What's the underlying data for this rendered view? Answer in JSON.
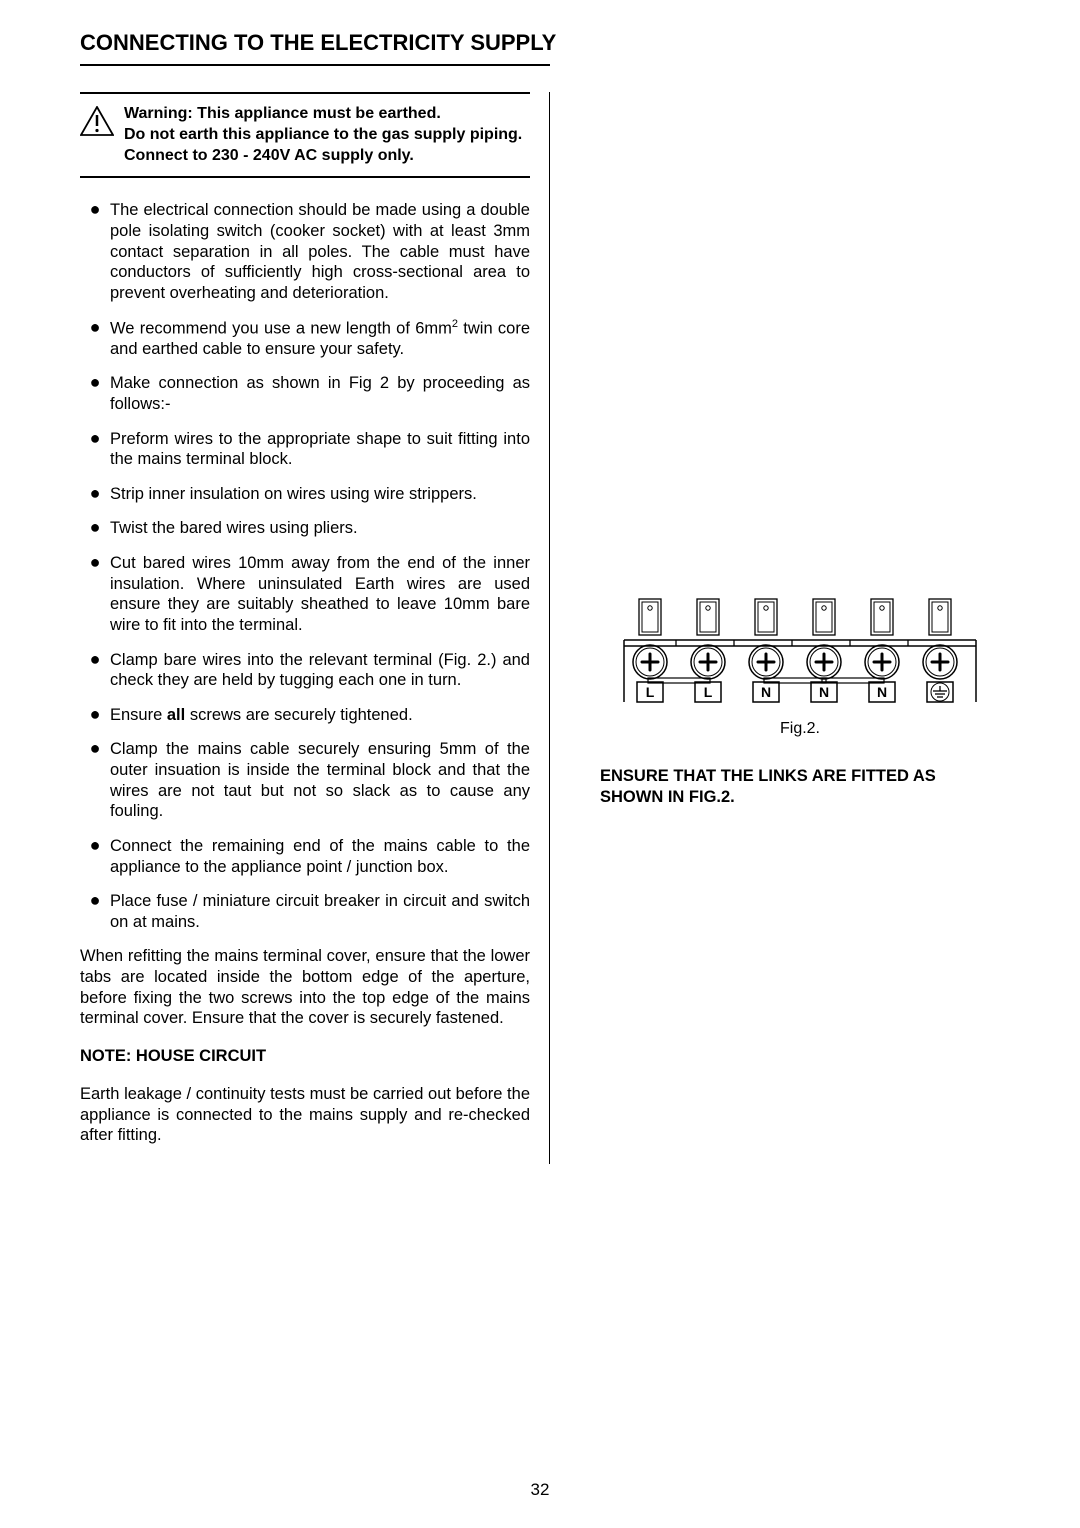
{
  "title": "CONNECTING TO THE ELECTRICITY SUPPLY",
  "warning": {
    "line1": "Warning: This appliance must be earthed.",
    "line2": "Do not earth this appliance to the gas supply piping.",
    "line3": "Connect to 230 - 240V AC supply only."
  },
  "bullets": [
    "The electrical connection should be made using a double pole isolating switch (cooker socket) with at least 3mm contact separation in all poles. The cable must have conductors of sufficiently high cross-sectional area to prevent overheating and deterioration.",
    "We recommend you use a new length of 6mm² twin core and earthed cable to ensure your safety.",
    "Make connection as shown in Fig 2 by proceeding as follows:-",
    "Preform wires to the appropriate shape to suit fitting into the mains terminal block.",
    "Strip inner insulation on wires using wire strippers.",
    "Twist the bared wires using pliers.",
    "Cut bared wires 10mm away from the end of the inner insulation.  Where uninsulated Earth wires are used ensure they are suitably sheathed to leave 10mm bare wire to fit into the terminal.",
    "Clamp bare wires into the relevant terminal (Fig. 2.) and check they are held by tugging each one in turn.",
    "Ensure all screws are securely tightened.",
    "Clamp the mains cable securely ensuring 5mm of the outer insuation is inside the terminal block and that the wires are not taut but not so slack as to cause any fouling.",
    "Connect the remaining end of the mains cable to the appliance to the appliance point / junction box.",
    "Place fuse / miniature circuit breaker in circuit and switch on at mains."
  ],
  "paragraph": "When refitting the mains terminal cover, ensure that the lower tabs are located inside the bottom edge of the aperture, before fixing the two screws into the top edge of the mains terminal cover.  Ensure that the cover is securely fastened.",
  "noteHead": "NOTE:  HOUSE CIRCUIT",
  "notePara": "Earth leakage / continuity tests must be carried out before the appliance is connected to the mains supply and re-checked after fitting.",
  "figure": {
    "caption": "Fig.2.",
    "terminals": [
      "L",
      "L",
      "N",
      "N",
      "N",
      ""
    ],
    "lastIsEarth": true
  },
  "ensureText": "ENSURE THAT THE LINKS ARE FITTED AS SHOWN IN FIG.2.",
  "pageNumber": "32",
  "boldWord": "all"
}
